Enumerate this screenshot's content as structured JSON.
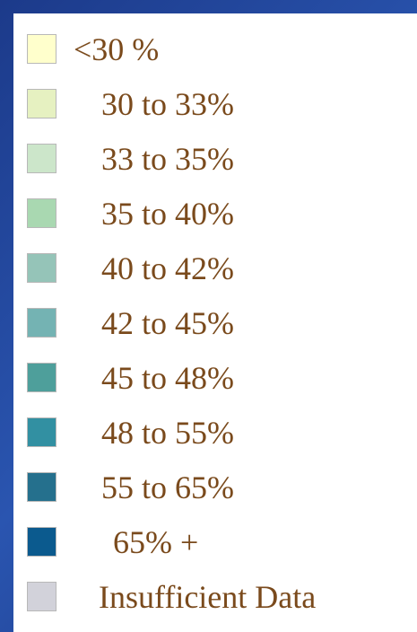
{
  "legend": {
    "items": [
      {
        "label": "<30 %",
        "color": "#ffffcc"
      },
      {
        "label": "30 to 33%",
        "color": "#e6f1c1"
      },
      {
        "label": "33 to 35%",
        "color": "#cce6ca"
      },
      {
        "label": "35 to 40%",
        "color": "#a9d8b1"
      },
      {
        "label": "40 to 42%",
        "color": "#95c4b8"
      },
      {
        "label": "42 to 45%",
        "color": "#74b3b3"
      },
      {
        "label": "45 to 48%",
        "color": "#4e9f9b"
      },
      {
        "label": "48 to 55%",
        "color": "#3290a2"
      },
      {
        "label": "55 to 65%",
        "color": "#25708d"
      },
      {
        "label": "65% +",
        "color": "#0b5a8e"
      },
      {
        "label": "Insufficient Data",
        "color": "#d2d2da"
      }
    ]
  }
}
